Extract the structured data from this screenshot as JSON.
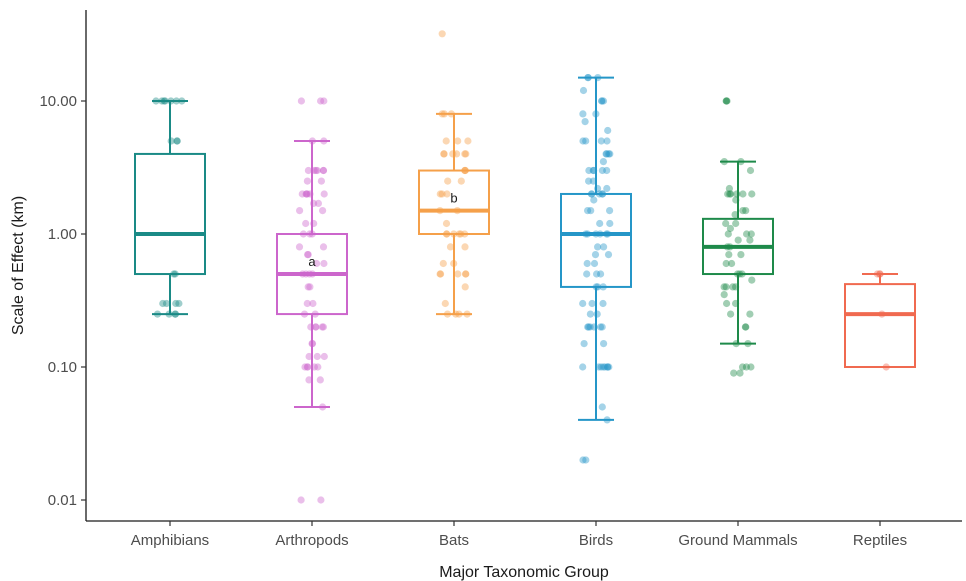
{
  "chart_data": {
    "type": "box",
    "xlabel": "Major Taxonomic Group",
    "ylabel": "Scale of Effect (km)",
    "y_scale": "log10",
    "ylim": [
      0.008,
      35
    ],
    "y_ticks": [
      0.01,
      0.1,
      1,
      10
    ],
    "y_tick_labels": [
      "0.01",
      "0.10",
      "1.00",
      "10.00"
    ],
    "grid": false,
    "legend": "none",
    "categories": [
      "Amphibians",
      "Arthropods",
      "Bats",
      "Birds",
      "Ground Mammals",
      "Reptiles"
    ],
    "groups": [
      {
        "name": "Amphibians",
        "color": "#1a8a86",
        "q1": 0.5,
        "median": 1.0,
        "q3": 4.0,
        "whisker_low": 0.25,
        "whisker_high": 10.0,
        "annotation": "",
        "points": [
          10,
          10,
          10,
          10,
          10,
          10,
          10,
          5,
          5,
          5,
          0.5,
          0.5,
          0.3,
          0.3,
          0.3,
          0.3,
          0.25,
          0.25,
          0.25,
          0.25
        ]
      },
      {
        "name": "Arthropods",
        "color": "#cc66cc",
        "q1": 0.25,
        "median": 0.5,
        "q3": 1.0,
        "whisker_low": 0.05,
        "whisker_high": 5.0,
        "annotation": "a",
        "points": [
          10,
          10,
          10,
          5,
          5,
          3,
          3,
          3,
          3,
          3,
          3,
          2.5,
          2.5,
          2,
          2,
          2,
          2,
          2,
          2,
          1.7,
          1.7,
          1.5,
          1.5,
          1.2,
          1.2,
          1,
          1,
          1,
          0.8,
          0.8,
          0.7,
          0.7,
          0.6,
          0.6,
          0.5,
          0.5,
          0.5,
          0.5,
          0.4,
          0.4,
          0.3,
          0.3,
          0.25,
          0.25,
          0.2,
          0.2,
          0.2,
          0.2,
          0.2,
          0.15,
          0.15,
          0.12,
          0.12,
          0.12,
          0.1,
          0.1,
          0.1,
          0.1,
          0.1,
          0.08,
          0.08,
          0.05,
          0.01,
          0.01
        ]
      },
      {
        "name": "Bats",
        "color": "#f5a04a",
        "q1": 1.0,
        "median": 1.5,
        "q3": 3.0,
        "whisker_low": 0.25,
        "whisker_high": 8.0,
        "annotation": "b",
        "points": [
          32,
          8,
          8,
          8,
          5,
          5,
          5,
          4,
          4,
          4,
          4,
          4,
          4,
          3,
          3,
          3,
          2.5,
          2.5,
          2,
          2,
          2,
          1.5,
          1.5,
          1.2,
          1,
          1,
          1,
          1,
          1,
          1,
          0.8,
          0.8,
          0.6,
          0.6,
          0.5,
          0.5,
          0.5,
          0.5,
          0.5,
          0.4,
          0.3,
          0.25,
          0.25,
          0.25,
          0.25
        ]
      },
      {
        "name": "Birds",
        "color": "#2596c8",
        "q1": 0.4,
        "median": 1.0,
        "q3": 2.0,
        "whisker_low": 0.04,
        "whisker_high": 15.0,
        "annotation": "",
        "points": [
          15,
          15,
          15,
          12,
          10,
          10,
          10,
          8,
          8,
          7,
          6,
          5,
          5,
          5,
          5,
          4,
          4,
          4,
          4,
          3.5,
          3,
          3,
          3,
          3,
          3,
          2.5,
          2.5,
          2.2,
          2.2,
          2,
          2,
          2,
          2,
          2,
          1.8,
          1.5,
          1.5,
          1.5,
          1.2,
          1.2,
          1,
          1,
          1,
          1,
          1,
          1,
          0.8,
          0.8,
          0.7,
          0.7,
          0.6,
          0.6,
          0.5,
          0.5,
          0.5,
          0.4,
          0.4,
          0.4,
          0.3,
          0.3,
          0.3,
          0.25,
          0.25,
          0.2,
          0.2,
          0.2,
          0.2,
          0.2,
          0.2,
          0.15,
          0.15,
          0.1,
          0.1,
          0.1,
          0.1,
          0.1,
          0.1,
          0.1,
          0.1,
          0.05,
          0.04,
          0.02,
          0.02
        ]
      },
      {
        "name": "Ground Mammals",
        "color": "#1e8a4a",
        "q1": 0.5,
        "median": 0.8,
        "q3": 1.3,
        "whisker_low": 0.15,
        "whisker_high": 3.5,
        "annotation": "",
        "points": [
          10,
          10,
          10,
          3.5,
          3.5,
          3,
          2.2,
          2,
          2,
          2,
          2,
          2,
          2,
          1.8,
          1.5,
          1.5,
          1.4,
          1.2,
          1.2,
          1.1,
          1,
          1,
          1,
          0.9,
          0.9,
          0.8,
          0.8,
          0.7,
          0.7,
          0.6,
          0.6,
          0.5,
          0.5,
          0.5,
          0.45,
          0.4,
          0.4,
          0.4,
          0.4,
          0.35,
          0.3,
          0.3,
          0.25,
          0.25,
          0.2,
          0.2,
          0.15,
          0.15,
          0.1,
          0.1,
          0.1,
          0.09,
          0.09
        ]
      },
      {
        "name": "Reptiles",
        "color": "#f06a50",
        "q1": 0.1,
        "median": 0.25,
        "q3": 0.42,
        "whisker_low": 0.1,
        "whisker_high": 0.5,
        "annotation": "",
        "points": [
          0.5,
          0.5,
          0.5,
          0.25,
          0.1
        ]
      }
    ]
  }
}
